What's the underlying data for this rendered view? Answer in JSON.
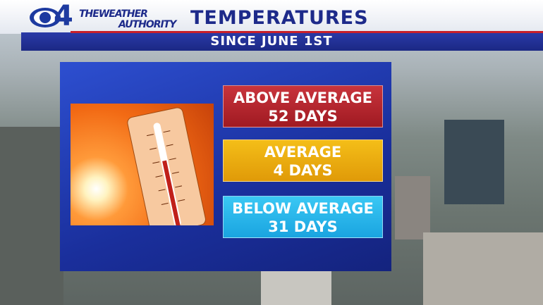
{
  "header": {
    "logo_number": "4",
    "brand_line1": "THEWEATHER",
    "brand_line2": "AUTHORITY",
    "title": "TEMPERATURES",
    "subtitle": "SINCE JUNE 1ST"
  },
  "boxes": [
    {
      "label": "ABOVE AVERAGE",
      "value": "52 DAYS"
    },
    {
      "label": "AVERAGE",
      "value": "4 DAYS"
    },
    {
      "label": "BELOW AVERAGE",
      "value": "31 DAYS"
    }
  ]
}
